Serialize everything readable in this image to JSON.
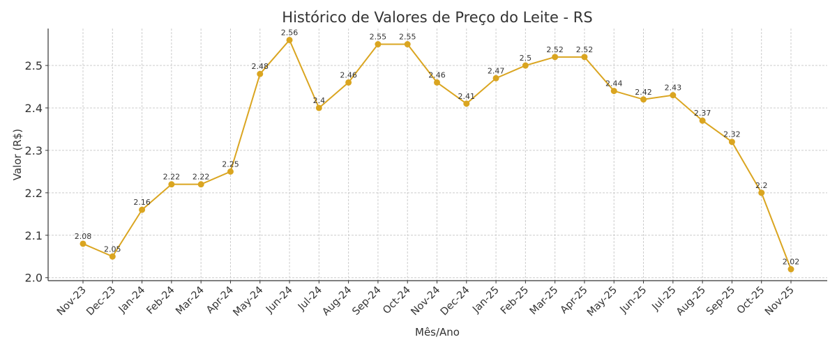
{
  "chart_data": {
    "type": "line",
    "title": "Histórico de Valores de Preço do Leite - RS",
    "xlabel": "Mês/Ano",
    "ylabel": "Valor (R$)",
    "categories": [
      "Nov-23",
      "Dec-23",
      "Jan-24",
      "Feb-24",
      "Mar-24",
      "Apr-24",
      "May-24",
      "Jun-24",
      "Jul-24",
      "Aug-24",
      "Sep-24",
      "Oct-24",
      "Nov-24",
      "Dec-24",
      "Jan-25",
      "Feb-25",
      "Mar-25",
      "Apr-25",
      "May-25",
      "Jun-25",
      "Jul-25",
      "Aug-25",
      "Sep-25",
      "Oct-25",
      "Nov-25"
    ],
    "values": [
      2.08,
      2.05,
      2.16,
      2.22,
      2.22,
      2.25,
      2.48,
      2.56,
      2.4,
      2.46,
      2.55,
      2.55,
      2.46,
      2.41,
      2.47,
      2.5,
      2.52,
      2.52,
      2.44,
      2.42,
      2.43,
      2.37,
      2.32,
      2.2,
      2.02
    ],
    "data_labels": [
      "2.08",
      "2.05",
      "2.16",
      "2.22",
      "2.22",
      "2.25",
      "2.48",
      "2.56",
      "2.4",
      "2.46",
      "2.55",
      "2.55",
      "2.46",
      "2.41",
      "2.47",
      "2.5",
      "2.52",
      "2.52",
      "2.44",
      "2.42",
      "2.43",
      "2.37",
      "2.32",
      "2.2",
      "2.02"
    ],
    "yticks": [
      "2.0",
      "2.1",
      "2.2",
      "2.3",
      "2.4",
      "2.5"
    ],
    "ylim": [
      1.993,
      2.587
    ],
    "grid": true,
    "color": "#DAA520"
  }
}
